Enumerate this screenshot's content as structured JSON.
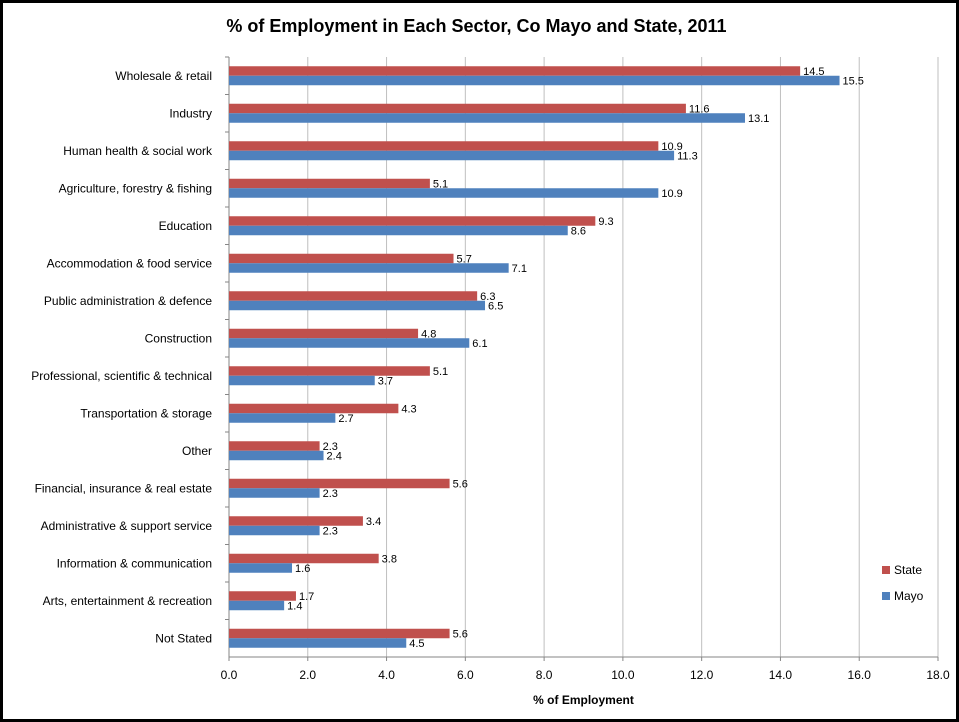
{
  "chart_data": {
    "type": "bar",
    "orientation": "horizontal",
    "title": "% of Employment in Each Sector, Co Mayo and State, 2011",
    "xlabel": "% of Employment",
    "ylabel": "",
    "xlim": [
      0,
      18
    ],
    "xticks": [
      "0.0",
      "2.0",
      "4.0",
      "6.0",
      "8.0",
      "10.0",
      "12.0",
      "14.0",
      "16.0",
      "18.0"
    ],
    "grid": true,
    "legend_position": "right",
    "categories": [
      "Wholesale & retail",
      "Industry",
      "Human health & social work",
      "Agriculture, forestry & fishing",
      "Education",
      "Accommodation & food service",
      "Public administration & defence",
      "Construction",
      "Professional, scientific & technical",
      "Transportation & storage",
      "Other",
      "Financial, insurance & real estate",
      "Administrative & support service",
      "Information & communication",
      "Arts, entertainment & recreation",
      "Not Stated"
    ],
    "series": [
      {
        "name": "State",
        "color": "#c0504d",
        "values": [
          14.5,
          11.6,
          10.9,
          5.1,
          9.3,
          5.7,
          6.3,
          4.8,
          5.1,
          4.3,
          2.3,
          5.6,
          3.4,
          3.8,
          1.7,
          5.6
        ]
      },
      {
        "name": "Mayo",
        "color": "#4f81bd",
        "values": [
          15.5,
          13.1,
          11.3,
          10.9,
          8.6,
          7.1,
          6.5,
          6.1,
          3.7,
          2.7,
          2.4,
          2.3,
          2.3,
          1.6,
          1.4,
          4.5
        ]
      }
    ]
  }
}
